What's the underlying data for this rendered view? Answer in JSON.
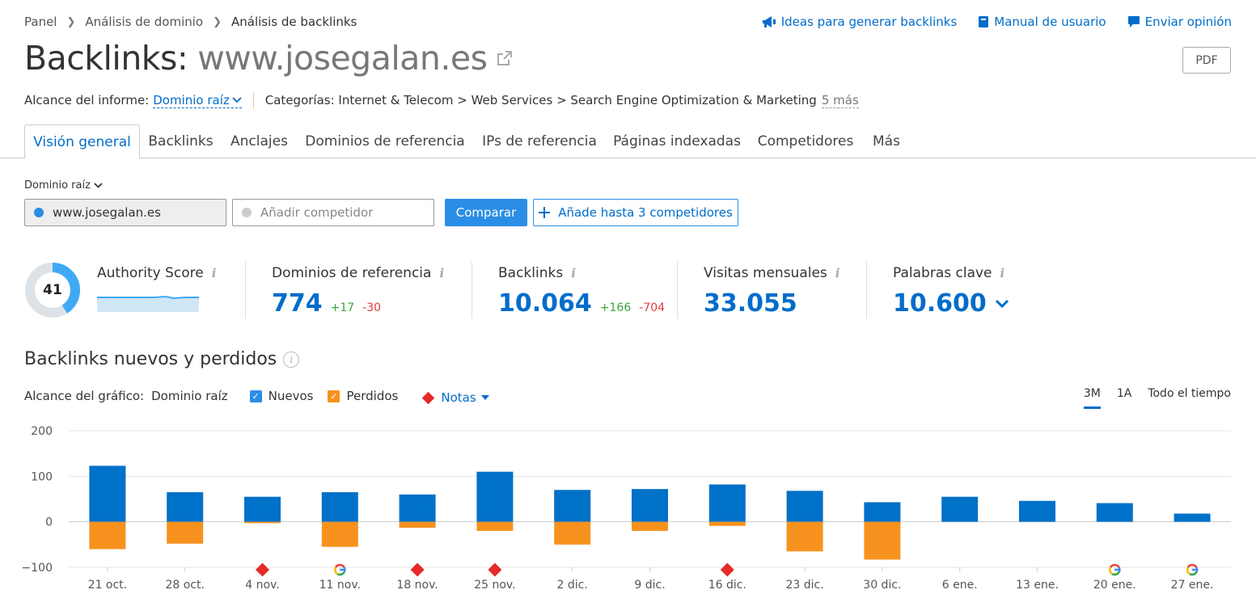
{
  "breadcrumb": [
    "Panel",
    "Análisis de dominio",
    "Análisis de backlinks"
  ],
  "top_links": {
    "ideas": "Ideas para generar backlinks",
    "manual": "Manual de usuario",
    "feedback": "Enviar opinión"
  },
  "title": {
    "prefix": "Backlinks:",
    "domain": "www.josegalan.es"
  },
  "pdf_label": "PDF",
  "scope": {
    "label": "Alcance del informe:",
    "value": "Dominio raíz",
    "categories": "Categorías: Internet & Telecom > Web Services > Search Engine Optimization & Marketing",
    "more": "5 más"
  },
  "tabs": [
    "Visión general",
    "Backlinks",
    "Anclajes",
    "Dominios de referencia",
    "IPs de referencia",
    "Páginas indexadas",
    "Competidores",
    "Más"
  ],
  "compare": {
    "root_dropdown": "Dominio raíz",
    "domain_value": "www.josegalan.es",
    "competitor_placeholder": "Añadir competidor",
    "compare_button": "Comparar",
    "add_button": "Añade hasta 3 competidores"
  },
  "metrics": {
    "authority": {
      "label": "Authority Score",
      "value": "41"
    },
    "ref_domains": {
      "label": "Dominios de referencia",
      "value": "774",
      "up": "+17",
      "down": "-30"
    },
    "backlinks": {
      "label": "Backlinks",
      "value": "10.064",
      "up": "+166",
      "down": "-704"
    },
    "visits": {
      "label": "Visitas mensuales",
      "value": "33.055"
    },
    "keywords": {
      "label": "Palabras clave",
      "value": "10.600"
    }
  },
  "section": {
    "title": "Backlinks nuevos y perdidos"
  },
  "chart_controls": {
    "scope_label": "Alcance del gráfico:",
    "scope_value": "Dominio raíz",
    "new_label": "Nuevos",
    "lost_label": "Perdidos",
    "notes_label": "Notas",
    "ranges": [
      "3M",
      "1A",
      "Todo el tiempo"
    ],
    "active_range": "3M"
  },
  "colors": {
    "accent": "#006dca",
    "new": "#0071c8",
    "lost": "#f7921e",
    "note": "#e62929"
  },
  "chart_data": {
    "type": "bar",
    "categories": [
      "21 oct.",
      "28 oct.",
      "4 nov.",
      "11 nov.",
      "18 nov.",
      "25 nov.",
      "2 dic.",
      "9 dic.",
      "16 dic.",
      "23 dic.",
      "30 dic.",
      "6 ene.",
      "13 ene.",
      "20 ene.",
      "27 ene."
    ],
    "series": [
      {
        "name": "Nuevos",
        "values": [
          123,
          65,
          55,
          65,
          60,
          110,
          70,
          72,
          82,
          68,
          43,
          55,
          46,
          41,
          18
        ]
      },
      {
        "name": "Perdidos",
        "values": [
          -60,
          -48,
          -3,
          -55,
          -13,
          -20,
          -50,
          -20,
          -9,
          -65,
          -83,
          0,
          0,
          0,
          0
        ]
      }
    ],
    "markers": [
      "",
      "",
      "note",
      "google",
      "note",
      "note",
      "",
      "",
      "note",
      "",
      "",
      "",
      "",
      "google",
      "google"
    ],
    "yticks": [
      "200",
      "100",
      "0",
      "−100"
    ],
    "ylim": [
      -100,
      200
    ],
    "grid": true
  }
}
